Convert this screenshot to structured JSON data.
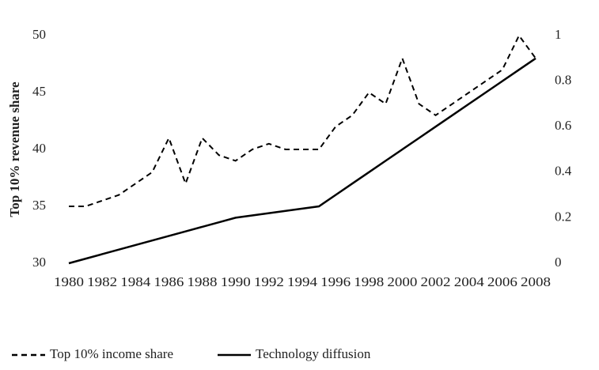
{
  "chart_data": {
    "type": "line",
    "y_label": "Top 10% revenue share",
    "x": [
      1980,
      1981,
      1982,
      1983,
      1984,
      1985,
      1986,
      1987,
      1988,
      1989,
      1990,
      1991,
      1992,
      1993,
      1994,
      1995,
      1996,
      1997,
      1998,
      1999,
      2000,
      2001,
      2002,
      2003,
      2004,
      2005,
      2006,
      2007,
      2008
    ],
    "xlim": [
      1980,
      2008
    ],
    "xticks": [
      1980,
      1982,
      1984,
      1986,
      1988,
      1990,
      1992,
      1994,
      1996,
      1998,
      2000,
      2002,
      2004,
      2006,
      2008
    ],
    "ylim": [
      30,
      50
    ],
    "yticks": [
      30,
      35,
      40,
      45,
      50
    ],
    "y2lim": [
      0,
      1
    ],
    "y2ticks": [
      0,
      0.2,
      0.4,
      0.6,
      0.8,
      1
    ],
    "series": [
      {
        "name": "Top 10% income share",
        "color": "#000000",
        "style": "dashed",
        "values": [
          35,
          35,
          35.5,
          36,
          37,
          38,
          41,
          37,
          41,
          39.5,
          39,
          40,
          40.5,
          40,
          40,
          40,
          42,
          43,
          45,
          44,
          48,
          44,
          43,
          44,
          45,
          46,
          47,
          50,
          48
        ]
      },
      {
        "name": "Technology diffusion",
        "color": "#000000",
        "style": "solid",
        "axis": "y2",
        "values": [
          0,
          0.02,
          0.04,
          0.06,
          0.08,
          0.1,
          0.12,
          0.14,
          0.16,
          0.18,
          0.2,
          0.21,
          0.22,
          0.23,
          0.24,
          0.25,
          0.3,
          0.35,
          0.4,
          0.45,
          0.5,
          0.55,
          0.6,
          0.65,
          0.7,
          0.75,
          0.8,
          0.85,
          0.9
        ]
      }
    ]
  }
}
